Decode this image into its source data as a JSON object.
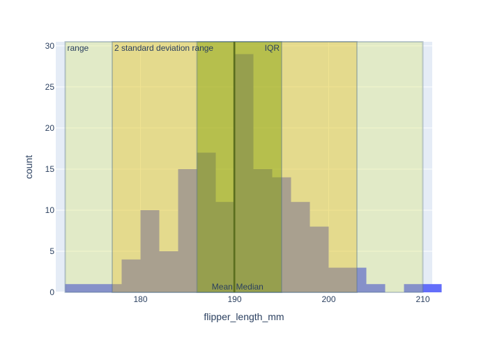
{
  "chart_data": {
    "type": "bar",
    "title": "",
    "xlabel": "flipper_length_mm",
    "ylabel": "count",
    "xlim": [
      171,
      211
    ],
    "ylim": [
      0,
      30.5
    ],
    "x_ticks": [
      180,
      190,
      200,
      210
    ],
    "y_ticks": [
      0,
      5,
      10,
      15,
      20,
      25,
      30
    ],
    "grid": true,
    "bar_color": "#636efa",
    "plot_background": "#e5ecf6",
    "bins": [
      {
        "x0": 172,
        "x1": 174,
        "count": 1
      },
      {
        "x0": 174,
        "x1": 176,
        "count": 1
      },
      {
        "x0": 176,
        "x1": 178,
        "count": 1
      },
      {
        "x0": 178,
        "x1": 180,
        "count": 4
      },
      {
        "x0": 180,
        "x1": 182,
        "count": 10
      },
      {
        "x0": 182,
        "x1": 184,
        "count": 5
      },
      {
        "x0": 184,
        "x1": 186,
        "count": 15
      },
      {
        "x0": 186,
        "x1": 188,
        "count": 17
      },
      {
        "x0": 188,
        "x1": 190,
        "count": 11
      },
      {
        "x0": 190,
        "x1": 192,
        "count": 29
      },
      {
        "x0": 192,
        "x1": 194,
        "count": 15
      },
      {
        "x0": 194,
        "x1": 196,
        "count": 14
      },
      {
        "x0": 196,
        "x1": 198,
        "count": 11
      },
      {
        "x0": 198,
        "x1": 200,
        "count": 8
      },
      {
        "x0": 200,
        "x1": 202,
        "count": 3
      },
      {
        "x0": 202,
        "x1": 204,
        "count": 3
      },
      {
        "x0": 204,
        "x1": 206,
        "count": 1
      },
      {
        "x0": 206,
        "x1": 208,
        "count": 0
      },
      {
        "x0": 208,
        "x1": 210,
        "count": 1
      },
      {
        "x0": 210,
        "x1": 212,
        "count": 1
      }
    ],
    "shapes": [
      {
        "label": "range",
        "x0": 172,
        "x1": 210,
        "fill": "#d8e35a",
        "opacity": 0.3
      },
      {
        "label": "2 standard deviation range",
        "x0": 177,
        "x1": 203,
        "fill": "#ebbd23",
        "opacity": 0.35
      },
      {
        "label": "IQR",
        "x0": 186,
        "x1": 195,
        "fill": "#7e9d00",
        "opacity": 0.45
      }
    ],
    "lines": [
      {
        "label": "Mean",
        "x": 189.95,
        "color": "#5a6e1e"
      },
      {
        "label": "Median",
        "x": 190,
        "color": "#5a6e1e"
      }
    ]
  }
}
